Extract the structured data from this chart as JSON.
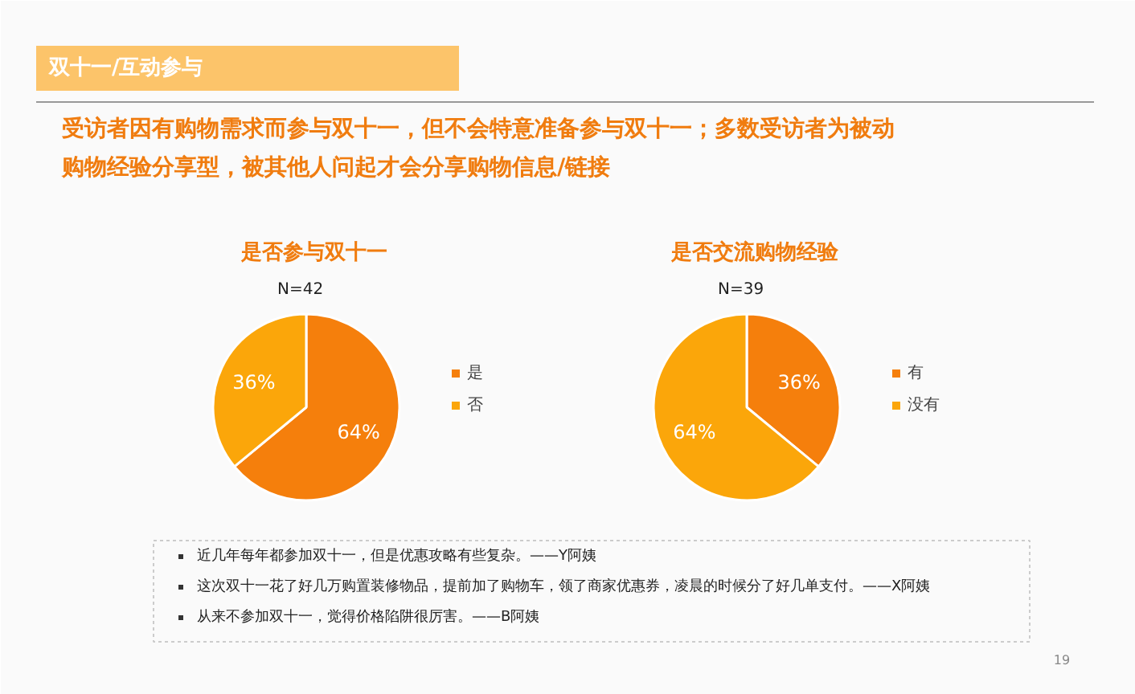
{
  "chart_data": [
    {
      "type": "pie",
      "title": "是否参与双十一",
      "subtitle": "N=42",
      "categories": [
        "是",
        "否"
      ],
      "values": [
        64,
        36
      ],
      "value_labels": [
        "64%",
        "36%"
      ],
      "colors": [
        "#f57f0c",
        "#fba60a"
      ],
      "legend": "right",
      "annotations": [
        "双十一/互动参与",
        "受访者因有购物需求而参与双十一，但不会特意准备参与双十一；多数受访者为被动购物经验分享型，被其他人问起才会分享购物信息/链接",
        "近几年每年都参加双十一，但是优惠攻略有些复杂。——Y阿姨",
        "这次双十一花了好几万购置装修物品，提前加了购物车，领了商家优惠券，凌晨的时候分了好几单支付。——X阿姨",
        "从来不参加双十一，觉得价格陷阱很厉害。——B阿姨",
        "19"
      ]
    },
    {
      "type": "pie",
      "title": "是否交流购物经验",
      "subtitle": "N=39",
      "categories": [
        "有",
        "没有"
      ],
      "values": [
        36,
        64
      ],
      "value_labels": [
        "36%",
        "64%"
      ],
      "colors": [
        "#f57f0c",
        "#fba60a"
      ],
      "legend": "right"
    }
  ]
}
